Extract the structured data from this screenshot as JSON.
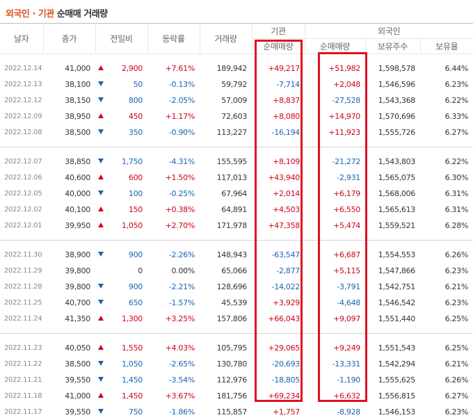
{
  "header": {
    "title_a": "외국인 · 기관",
    "title_b": "순매매 거래량"
  },
  "table": {
    "columns": {
      "date": "날자",
      "close": "종가",
      "change": "전일비",
      "rate": "등락률",
      "volume": "거래량",
      "inst": "기관",
      "foreign": "외국인",
      "inst_net": "순매매량",
      "foreign_net": "순매매량",
      "holdings": "보유주수",
      "ratio": "보유율"
    },
    "groups": [
      [
        [
          "2022.12.14",
          "41,000",
          "up",
          "2,900",
          "+7.61%",
          "189,942",
          "+49,217",
          "+51,982",
          "1,598,578",
          "6.44%"
        ],
        [
          "2022.12.13",
          "38,100",
          "down",
          "50",
          "-0.13%",
          "59,792",
          "-7,714",
          "+2,048",
          "1,546,596",
          "6.23%"
        ],
        [
          "2022.12.12",
          "38,150",
          "down",
          "800",
          "-2.05%",
          "57,009",
          "+8,837",
          "-27,528",
          "1,543,368",
          "6.22%"
        ],
        [
          "2022.12.09",
          "38,950",
          "up",
          "450",
          "+1.17%",
          "72,603",
          "+8,080",
          "+14,970",
          "1,570,696",
          "6.33%"
        ],
        [
          "2022.12.08",
          "38,500",
          "down",
          "350",
          "-0.90%",
          "113,227",
          "-16,194",
          "+11,923",
          "1,555,726",
          "6.27%"
        ]
      ],
      [
        [
          "2022.12.07",
          "38,850",
          "down",
          "1,750",
          "-4.31%",
          "155,595",
          "+8,109",
          "-21,272",
          "1,543,803",
          "6.22%"
        ],
        [
          "2022.12.06",
          "40,600",
          "up",
          "600",
          "+1.50%",
          "117,013",
          "+43,940",
          "-2,931",
          "1,565,075",
          "6.30%"
        ],
        [
          "2022.12.05",
          "40,000",
          "down",
          "100",
          "-0.25%",
          "67,964",
          "+2,014",
          "+6,179",
          "1,568,006",
          "6.31%"
        ],
        [
          "2022.12.02",
          "40,100",
          "up",
          "150",
          "+0.38%",
          "64,891",
          "+4,503",
          "+6,550",
          "1,565,613",
          "6.31%"
        ],
        [
          "2022.12.01",
          "39,950",
          "up",
          "1,050",
          "+2.70%",
          "171,978",
          "+47,358",
          "+5,474",
          "1,559,521",
          "6.28%"
        ]
      ],
      [
        [
          "2022.11.30",
          "38,900",
          "down",
          "900",
          "-2.26%",
          "148,943",
          "-63,547",
          "+6,687",
          "1,554,553",
          "6.26%"
        ],
        [
          "2022.11.29",
          "39,800",
          "none",
          "0",
          "0.00%",
          "65,066",
          "-2,877",
          "+5,115",
          "1,547,866",
          "6.23%"
        ],
        [
          "2022.11.28",
          "39,800",
          "down",
          "900",
          "-2.21%",
          "128,696",
          "-14,022",
          "-3,791",
          "1,542,751",
          "6.21%"
        ],
        [
          "2022.11.25",
          "40,700",
          "down",
          "650",
          "-1.57%",
          "45,539",
          "+3,929",
          "-4,648",
          "1,546,542",
          "6.23%"
        ],
        [
          "2022.11.24",
          "41,350",
          "up",
          "1,300",
          "+3.25%",
          "157,806",
          "+66,043",
          "+9,097",
          "1,551,440",
          "6.25%"
        ]
      ],
      [
        [
          "2022.11.23",
          "40,050",
          "up",
          "1,550",
          "+4.03%",
          "105,795",
          "+29,065",
          "+9,249",
          "1,551,543",
          "6.25%"
        ],
        [
          "2022.11.22",
          "38,500",
          "down",
          "1,050",
          "-2.65%",
          "130,780",
          "-20,693",
          "-13,331",
          "1,542,294",
          "6.21%"
        ],
        [
          "2022.11.21",
          "39,550",
          "down",
          "1,450",
          "-3.54%",
          "112,976",
          "-18,805",
          "-1,190",
          "1,555,625",
          "6.26%"
        ],
        [
          "2022.11.18",
          "41,000",
          "up",
          "1,450",
          "+3.67%",
          "181,756",
          "+69,234",
          "+6,632",
          "1,556,815",
          "6.27%"
        ],
        [
          "2022.11.17",
          "39,550",
          "down",
          "750",
          "-1.86%",
          "115,857",
          "+1,757",
          "-8,928",
          "1,546,153",
          "6.23%"
        ]
      ]
    ]
  }
}
